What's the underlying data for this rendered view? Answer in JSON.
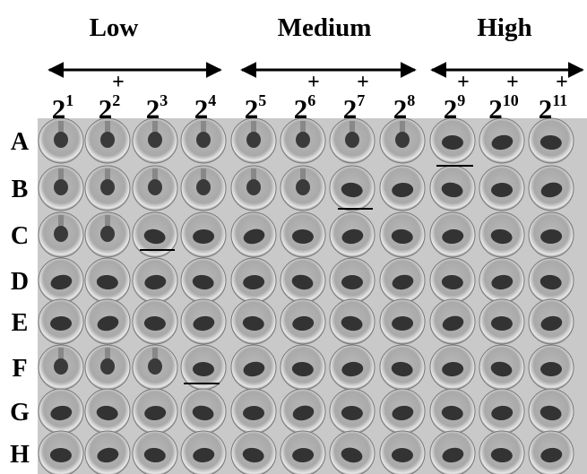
{
  "groups": [
    {
      "label": "Low"
    },
    {
      "label": "Medium"
    },
    {
      "label": "High"
    }
  ],
  "columns": [
    {
      "base": "2",
      "exponent": "1"
    },
    {
      "base": "2",
      "exponent": "2",
      "mark": "+"
    },
    {
      "base": "2",
      "exponent": "3"
    },
    {
      "base": "2",
      "exponent": "4"
    },
    {
      "base": "2",
      "exponent": "5"
    },
    {
      "base": "2",
      "exponent": "6",
      "mark": "+"
    },
    {
      "base": "2",
      "exponent": "7",
      "mark": "+"
    },
    {
      "base": "2",
      "exponent": "8"
    },
    {
      "base": "2",
      "exponent": "9",
      "mark": "+"
    },
    {
      "base": "2",
      "exponent": "10",
      "mark": "+"
    },
    {
      "base": "2",
      "exponent": "11",
      "mark": "+"
    }
  ],
  "rows": [
    "A",
    "B",
    "C",
    "D",
    "E",
    "F",
    "G",
    "H"
  ]
}
